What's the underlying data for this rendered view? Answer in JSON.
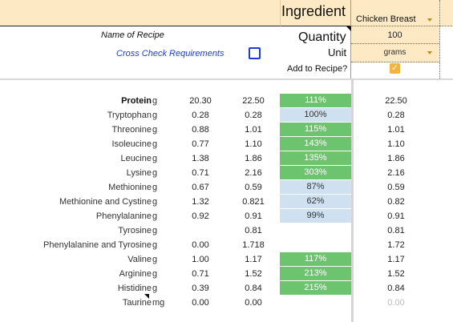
{
  "header": {
    "ingredient_label": "Ingredient",
    "name_of_recipe_label": "Name of Recipe",
    "cross_check_label": "Cross Check Requirements",
    "quantity_label": "Quantity",
    "unit_label": "Unit",
    "add_to_recipe_label": "Add to Recipe?",
    "ingredient_value": "Chicken Breast",
    "quantity_value": "100",
    "unit_value": "grams",
    "add_to_recipe_checked": true,
    "checkmark": "✓"
  },
  "colors": {
    "band": "#fde9c4",
    "green": "#6cc46e",
    "blue": "#cfe0f1",
    "link_blue": "#1f3dd6",
    "checkbox_yellow": "#f2b43c"
  },
  "rows": [
    {
      "name": "Protein",
      "unit": "g",
      "v1": "20.30",
      "v2": "22.50",
      "pct": "111%",
      "pct_color": "green",
      "v3": "22.50",
      "bold": true
    },
    {
      "name": "Tryptophan",
      "unit": "g",
      "v1": "0.28",
      "v2": "0.28",
      "pct": "100%",
      "pct_color": "blue",
      "v3": "0.28"
    },
    {
      "name": "Threonine",
      "unit": "g",
      "v1": "0.88",
      "v2": "1.01",
      "pct": "115%",
      "pct_color": "green",
      "v3": "1.01"
    },
    {
      "name": "Isoleucine",
      "unit": "g",
      "v1": "0.77",
      "v2": "1.10",
      "pct": "143%",
      "pct_color": "green",
      "v3": "1.10"
    },
    {
      "name": "Leucine",
      "unit": "g",
      "v1": "1.38",
      "v2": "1.86",
      "pct": "135%",
      "pct_color": "green",
      "v3": "1.86"
    },
    {
      "name": "Lysine",
      "unit": "g",
      "v1": "0.71",
      "v2": "2.16",
      "pct": "303%",
      "pct_color": "green",
      "v3": "2.16"
    },
    {
      "name": "Methionine",
      "unit": "g",
      "v1": "0.67",
      "v2": "0.59",
      "pct": "87%",
      "pct_color": "blue",
      "v3": "0.59"
    },
    {
      "name": "Methionine and Cystine",
      "unit": "g",
      "v1": "1.32",
      "v2": "0.821",
      "pct": "62%",
      "pct_color": "blue",
      "v3": "0.82"
    },
    {
      "name": "Phenylalanine",
      "unit": "g",
      "v1": "0.92",
      "v2": "0.91",
      "pct": "99%",
      "pct_color": "blue",
      "v3": "0.91"
    },
    {
      "name": "Tyrosine",
      "unit": "g",
      "v1": "",
      "v2": "0.81",
      "pct": "",
      "pct_color": "",
      "v3": "0.81"
    },
    {
      "name": "Phenylalanine and Tyrosine",
      "unit": "g",
      "v1": "0.00",
      "v2": "1.718",
      "pct": "",
      "pct_color": "",
      "v3": "1.72"
    },
    {
      "name": "Valine",
      "unit": "g",
      "v1": "1.00",
      "v2": "1.17",
      "pct": "117%",
      "pct_color": "green",
      "v3": "1.17"
    },
    {
      "name": "Arginine",
      "unit": "g",
      "v1": "0.71",
      "v2": "1.52",
      "pct": "213%",
      "pct_color": "green",
      "v3": "1.52"
    },
    {
      "name": "Histidine",
      "unit": "g",
      "v1": "0.39",
      "v2": "0.84",
      "pct": "215%",
      "pct_color": "green",
      "v3": "0.84"
    },
    {
      "name": "Taurine",
      "unit": "mg",
      "v1": "0.00",
      "v2": "0.00",
      "pct": "",
      "pct_color": "",
      "v3": "0.00",
      "faint_v3": true
    }
  ]
}
